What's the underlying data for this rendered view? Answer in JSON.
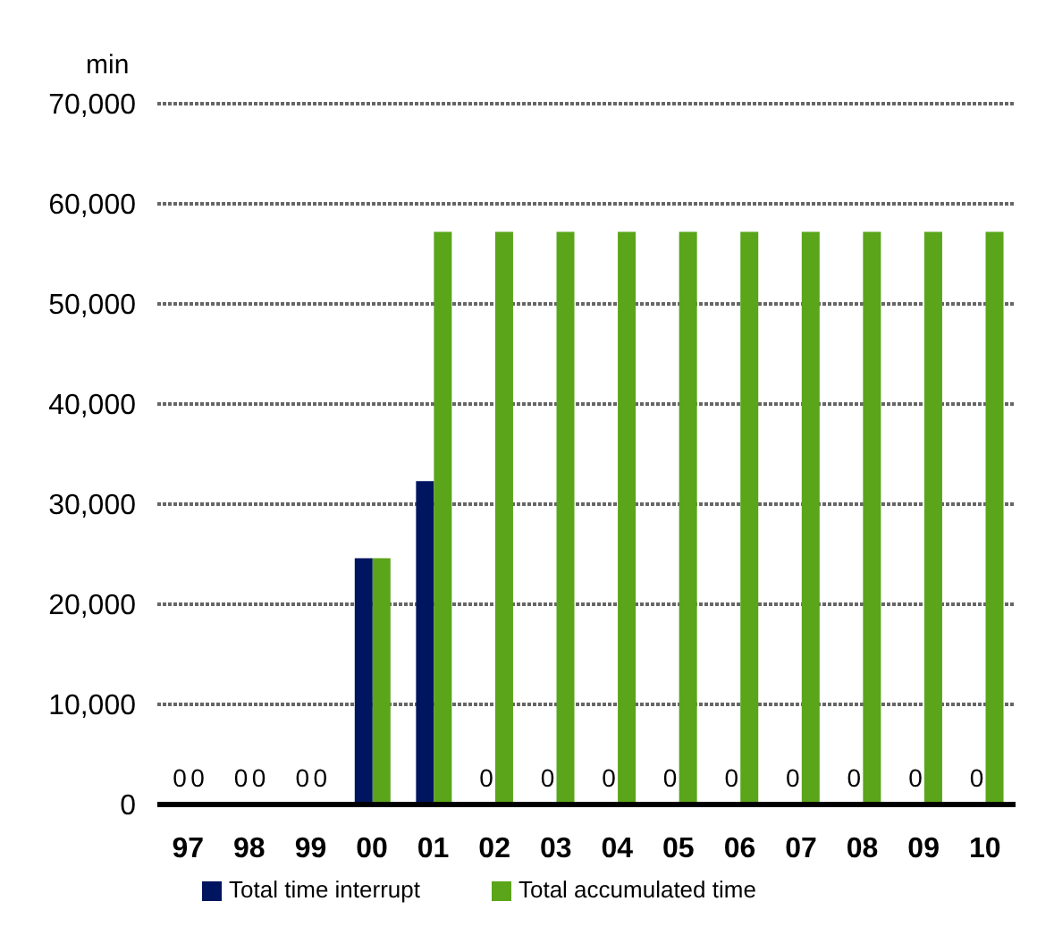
{
  "chart_data": {
    "type": "bar",
    "ylabel": "min",
    "categories": [
      "97",
      "98",
      "99",
      "00",
      "01",
      "02",
      "03",
      "04",
      "05",
      "06",
      "07",
      "08",
      "09",
      "10"
    ],
    "series": [
      {
        "name": "Total time interrupt",
        "color": "#001560",
        "values": [
          0,
          0,
          0,
          24600,
          32300,
          0,
          0,
          0,
          0,
          0,
          0,
          0,
          0,
          0
        ],
        "value_labels": [
          "0",
          "0",
          "0",
          null,
          null,
          "0",
          "0",
          "0",
          "0",
          "0",
          "0",
          "0",
          "0",
          "0"
        ]
      },
      {
        "name": "Total accumulated time",
        "color": "#5aa51a",
        "values": [
          0,
          0,
          0,
          24600,
          57200,
          57200,
          57200,
          57200,
          57200,
          57200,
          57200,
          57200,
          57200,
          57200
        ],
        "value_labels": [
          "0",
          "0",
          "0",
          null,
          null,
          null,
          null,
          null,
          null,
          null,
          null,
          null,
          null,
          null
        ]
      }
    ],
    "ylim": [
      0,
      70000
    ],
    "yticks": [
      0,
      {
        "value": 10000,
        "label": "10,000"
      },
      {
        "value": 20000,
        "label": "20,000"
      },
      {
        "value": 30000,
        "label": "30,000"
      },
      {
        "value": 40000,
        "label": "40,000"
      },
      {
        "value": 50000,
        "label": "50,000"
      },
      {
        "value": 60000,
        "label": "60,000"
      },
      {
        "value": 70000,
        "label": "70,000"
      }
    ],
    "grid": "y",
    "legend": "bottom"
  }
}
